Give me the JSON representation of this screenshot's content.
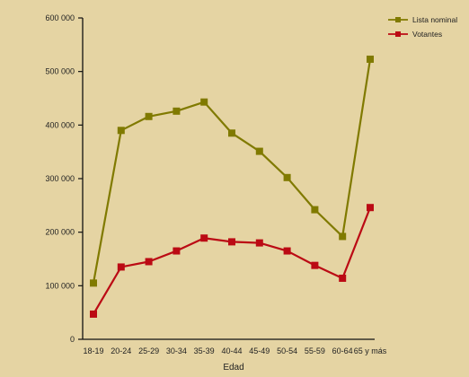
{
  "chart_data": {
    "type": "line",
    "title": "",
    "xlabel": "Edad",
    "ylabel": "",
    "categories": [
      "18-19",
      "20-24",
      "25-29",
      "30-34",
      "35-39",
      "40-44",
      "45-49",
      "50-54",
      "55-59",
      "60-64",
      "65 y más"
    ],
    "y_ticks": [
      0,
      100000,
      200000,
      300000,
      400000,
      500000,
      600000
    ],
    "y_tick_labels": [
      "0",
      "100 000",
      "200 000",
      "300 000",
      "400 000",
      "500 000",
      "600 000"
    ],
    "ylim": [
      0,
      600000
    ],
    "grid": false,
    "legend_position": "top-right",
    "series": [
      {
        "name": "Lista nominal",
        "color": "#807a00",
        "values": [
          105000,
          390000,
          416000,
          426000,
          443000,
          385000,
          351000,
          302000,
          242000,
          192000,
          523000
        ]
      },
      {
        "name": "Votantes",
        "color": "#bb0a14",
        "values": [
          47000,
          135000,
          145000,
          165000,
          189000,
          182000,
          180000,
          165000,
          138000,
          114000,
          246000
        ]
      }
    ]
  }
}
